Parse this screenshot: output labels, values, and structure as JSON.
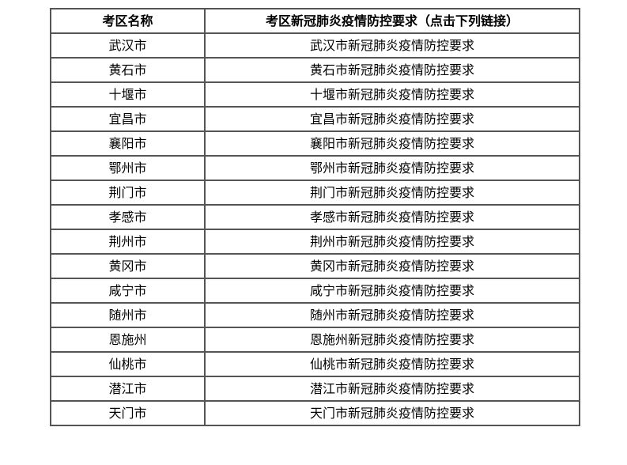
{
  "table": {
    "headers": [
      "考区名称",
      "考区新冠肺炎疫情防控要求（点击下列链接）"
    ],
    "rows": [
      {
        "region": "武汉市",
        "link": "武汉市新冠肺炎疫情防控要求"
      },
      {
        "region": "黄石市",
        "link": "黄石市新冠肺炎疫情防控要求"
      },
      {
        "region": "十堰市",
        "link": "十堰市新冠肺炎疫情防控要求"
      },
      {
        "region": "宜昌市",
        "link": "宜昌市新冠肺炎疫情防控要求"
      },
      {
        "region": "襄阳市",
        "link": "襄阳市新冠肺炎疫情防控要求"
      },
      {
        "region": "鄂州市",
        "link": "鄂州市新冠肺炎疫情防控要求"
      },
      {
        "region": "荆门市",
        "link": "荆门市新冠肺炎疫情防控要求"
      },
      {
        "region": "孝感市",
        "link": "孝感市新冠肺炎疫情防控要求"
      },
      {
        "region": "荆州市",
        "link": "荆州市新冠肺炎疫情防控要求"
      },
      {
        "region": "黄冈市",
        "link": "黄冈市新冠肺炎疫情防控要求"
      },
      {
        "region": "咸宁市",
        "link": "咸宁市新冠肺炎疫情防控要求"
      },
      {
        "region": "随州市",
        "link": "随州市新冠肺炎疫情防控要求"
      },
      {
        "region": "恩施州",
        "link": "恩施州新冠肺炎疫情防控要求"
      },
      {
        "region": "仙桃市",
        "link": "仙桃市新冠肺炎疫情防控要求"
      },
      {
        "region": "潜江市",
        "link": "潜江市新冠肺炎疫情防控要求"
      },
      {
        "region": "天门市",
        "link": "天门市新冠肺炎疫情防控要求"
      }
    ]
  }
}
